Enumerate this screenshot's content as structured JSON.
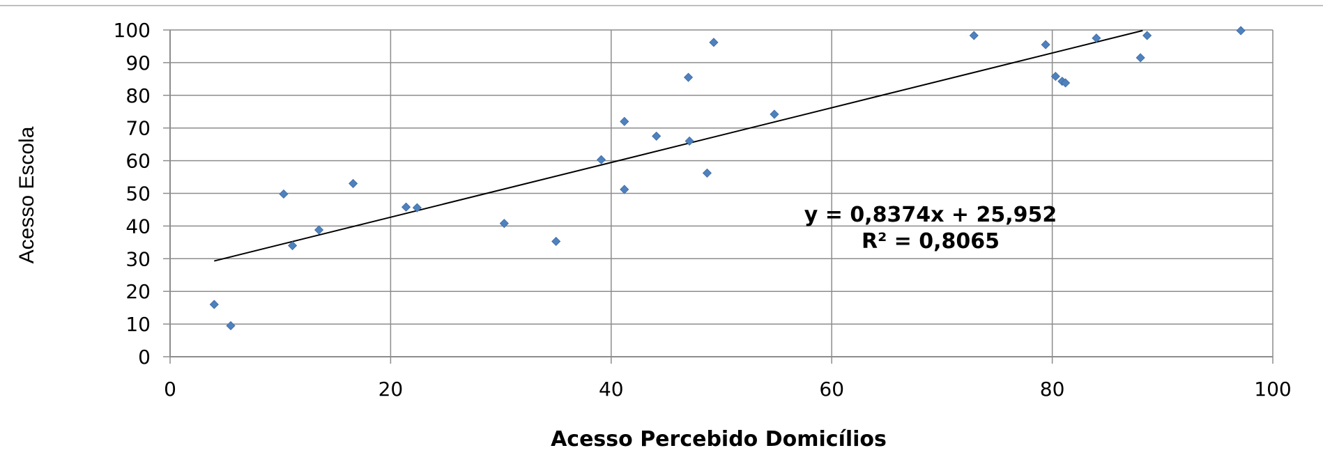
{
  "chart_data": {
    "type": "scatter",
    "xlabel": "Acesso Percebido Domicílios",
    "ylabel": "Acesso Escola",
    "xlim": [
      0,
      100
    ],
    "ylim": [
      0,
      100
    ],
    "x_ticks": [
      0,
      20,
      40,
      60,
      80,
      100
    ],
    "y_ticks": [
      0,
      10,
      20,
      30,
      40,
      50,
      60,
      70,
      80,
      90,
      100
    ],
    "grid": true,
    "legend": "none",
    "marker_color": "#4f81bd",
    "trendline_color": "#000000",
    "series": [
      {
        "points": [
          {
            "x": 4,
            "y": 16
          },
          {
            "x": 5.5,
            "y": 9.5
          },
          {
            "x": 10.3,
            "y": 49.8
          },
          {
            "x": 11.1,
            "y": 34
          },
          {
            "x": 13.5,
            "y": 38.8
          },
          {
            "x": 16.6,
            "y": 53
          },
          {
            "x": 21.4,
            "y": 45.8
          },
          {
            "x": 22.4,
            "y": 45.6
          },
          {
            "x": 30.3,
            "y": 40.8
          },
          {
            "x": 35,
            "y": 35.3
          },
          {
            "x": 39.1,
            "y": 60.3
          },
          {
            "x": 41.2,
            "y": 72
          },
          {
            "x": 41.2,
            "y": 51.2
          },
          {
            "x": 44.1,
            "y": 67.5
          },
          {
            "x": 47,
            "y": 85.5
          },
          {
            "x": 47.1,
            "y": 66
          },
          {
            "x": 48.7,
            "y": 56.2
          },
          {
            "x": 49.3,
            "y": 96.2
          },
          {
            "x": 54.8,
            "y": 74.2
          },
          {
            "x": 72.9,
            "y": 98.3
          },
          {
            "x": 79.4,
            "y": 95.5
          },
          {
            "x": 80.3,
            "y": 85.8
          },
          {
            "x": 80.9,
            "y": 84.3
          },
          {
            "x": 81.2,
            "y": 83.8
          },
          {
            "x": 84,
            "y": 97.5
          },
          {
            "x": 88,
            "y": 91.5
          },
          {
            "x": 88.6,
            "y": 98.3
          },
          {
            "x": 97.1,
            "y": 99.8
          }
        ]
      }
    ],
    "trendline": {
      "slope": 0.8374,
      "intercept": 25.952,
      "x_range": [
        4,
        88.2
      ],
      "equation_label": "y = 0,8374x + 25,952",
      "r2_label": "R² = 0,8065"
    }
  }
}
